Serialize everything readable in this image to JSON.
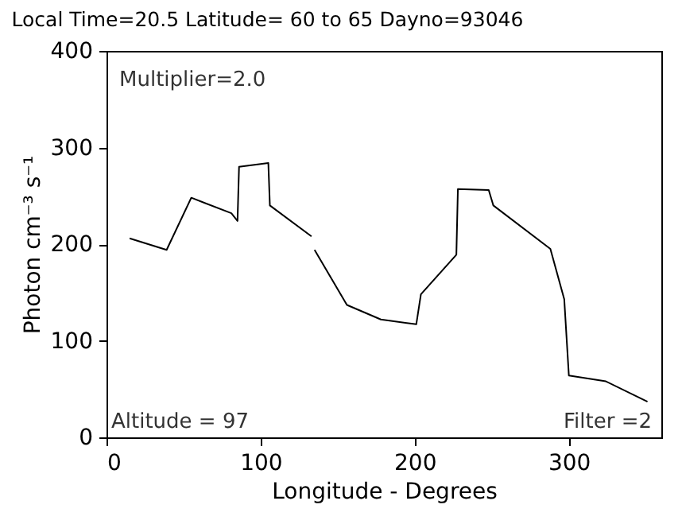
{
  "chart_data": {
    "type": "line",
    "title": "Local Time=20.5 Latitude=  60 to 65  Dayno=93046",
    "xlabel": "Longitude - Degrees",
    "ylabel": "Photon cm⁻³ s⁻¹",
    "x": [
      15,
      39,
      55,
      81,
      85,
      86,
      105,
      106,
      133,
      134,
      135,
      156,
      178,
      201,
      204,
      227,
      228,
      248,
      251,
      288,
      297,
      300,
      324,
      351
    ],
    "series": [
      {
        "color": "#000000",
        "values": [
          206,
          194,
          248,
          232,
          224,
          280,
          284,
          240,
          208,
          null,
          194,
          137,
          122,
          117,
          148,
          189,
          257,
          256,
          240,
          195,
          143,
          64,
          58,
          37
        ]
      }
    ],
    "xlim": [
      0,
      360
    ],
    "xticks": [
      0,
      100,
      200,
      300
    ],
    "ylim": [
      0,
      400
    ],
    "yticks": [
      0,
      100,
      200,
      300,
      400
    ],
    "annotations": [
      "Multiplier=2.0",
      "Altitude = 97",
      "Filter =2"
    ],
    "grid": false,
    "marker": "none",
    "line_style": "solid"
  }
}
